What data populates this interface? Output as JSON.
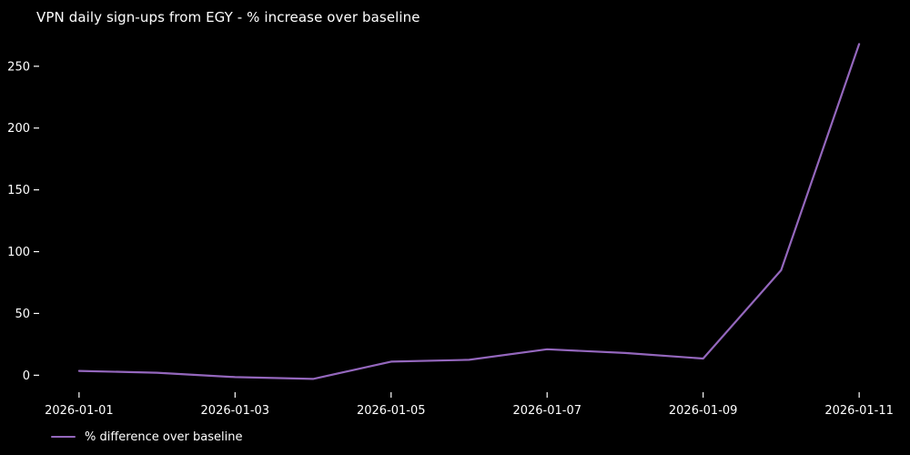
{
  "figure": {
    "background": "#000000",
    "text_color": "#ffffff"
  },
  "legend": {
    "label": "% difference over baseline"
  },
  "chart_data": {
    "type": "line",
    "title": "VPN daily sign-ups from EGY - % increase over baseline",
    "xlabel": "",
    "ylabel": "",
    "x": [
      "2026-01-01",
      "2026-01-02",
      "2026-01-03",
      "2026-01-04",
      "2026-01-05",
      "2026-01-06",
      "2026-01-07",
      "2026-01-08",
      "2026-01-09",
      "2026-01-10",
      "2026-01-11"
    ],
    "series": [
      {
        "name": "% difference over baseline",
        "color": "#9467bd",
        "values": [
          3.5,
          2,
          -1.5,
          -3,
          11,
          12.5,
          21,
          18,
          13.5,
          85,
          268
        ]
      }
    ],
    "x_tick_indices": [
      0,
      2,
      4,
      6,
      8,
      10
    ],
    "y_ticks": [
      0,
      50,
      100,
      150,
      200,
      250
    ],
    "ylim": [
      -13,
      283
    ],
    "grid": false,
    "legend_position": "lower left, below axes",
    "background": "#000000",
    "tick_color": "#ffffff"
  }
}
